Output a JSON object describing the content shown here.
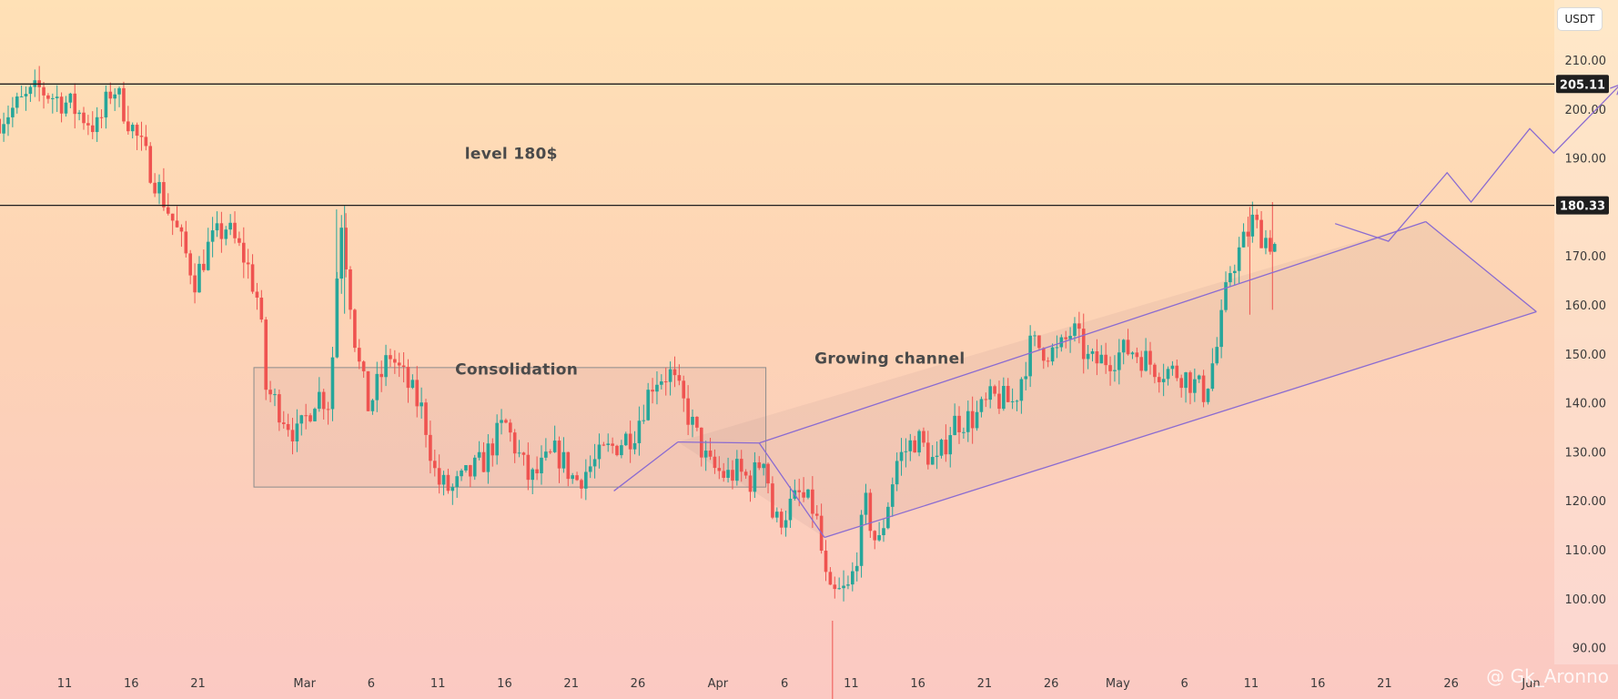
{
  "currency_label": "USDT",
  "watermark": "@ Gk_Aronno",
  "colors": {
    "up": "#26a69a",
    "down": "#ef5350",
    "channel": "#8a6bd1",
    "level_line": "#1f1f1f",
    "box_border": "#8c8c8c"
  },
  "chart_data": {
    "type": "candlestick",
    "title": "",
    "ylim": [
      87,
      220
    ],
    "y_ticks": [
      "210.00",
      "200.00",
      "190.00",
      "180.00",
      "170.00",
      "160.00",
      "150.00",
      "140.00",
      "130.00",
      "120.00",
      "110.00",
      "100.00",
      "90.00"
    ],
    "y_tick_values": [
      210,
      200,
      190,
      180,
      170,
      160,
      150,
      140,
      130,
      120,
      110,
      100,
      90
    ],
    "x_range_days": [
      0,
      120
    ],
    "x_ticks": [
      {
        "label": "11",
        "day": 0
      },
      {
        "label": "16",
        "day": 5
      },
      {
        "label": "21",
        "day": 10
      },
      {
        "label": "Mar",
        "day": 18
      },
      {
        "label": "6",
        "day": 23
      },
      {
        "label": "11",
        "day": 28
      },
      {
        "label": "16",
        "day": 33
      },
      {
        "label": "21",
        "day": 38
      },
      {
        "label": "26",
        "day": 43
      },
      {
        "label": "Apr",
        "day": 49
      },
      {
        "label": "6",
        "day": 54
      },
      {
        "label": "11",
        "day": 59
      },
      {
        "label": "16",
        "day": 64
      },
      {
        "label": "21",
        "day": 69
      },
      {
        "label": "26",
        "day": 74
      },
      {
        "label": "May",
        "day": 79
      },
      {
        "label": "6",
        "day": 84
      },
      {
        "label": "11",
        "day": 89
      },
      {
        "label": "16",
        "day": 94
      },
      {
        "label": "21",
        "day": 99
      },
      {
        "label": "26",
        "day": 104
      },
      {
        "label": "Jun",
        "day": 110
      }
    ],
    "levels": [
      {
        "value": 205.11,
        "label": "205.11"
      },
      {
        "value": 180.33,
        "label": "180.33"
      }
    ],
    "annotations": [
      {
        "text": "level 180$",
        "day": 33.5,
        "value": 189.8
      },
      {
        "text": "Consolidation",
        "day": 33.9,
        "value": 145.8
      },
      {
        "text": "Growing channel",
        "day": 61.9,
        "value": 148.0
      }
    ],
    "consolidation_box": {
      "day_start": 14.2,
      "day_end": 52.6,
      "high": 147.2,
      "low": 122.8
    },
    "channel": {
      "upper": [
        [
          52.1,
          131.8
        ],
        [
          102.1,
          177.0
        ]
      ],
      "lower": [
        [
          57.0,
          112.5
        ],
        [
          110.4,
          158.6
        ]
      ],
      "triangle_top": [
        46.0,
        132.0
      ]
    },
    "projection": [
      [
        95.3,
        176.6
      ],
      [
        99.3,
        173.0
      ],
      [
        103.7,
        187.0
      ],
      [
        105.5,
        181.0
      ],
      [
        109.9,
        196.0
      ],
      [
        111.7,
        191.0
      ],
      [
        116.7,
        205.0
      ]
    ],
    "anchors": [
      {
        "day": -4.9,
        "price": 198
      },
      {
        "day": -1.9,
        "price": 204
      },
      {
        "day": 0.3,
        "price": 201
      },
      {
        "day": 2.5,
        "price": 196
      },
      {
        "day": 3.6,
        "price": 205
      },
      {
        "day": 6.1,
        "price": 190
      },
      {
        "day": 8.3,
        "price": 176
      },
      {
        "day": 9.8,
        "price": 165
      },
      {
        "day": 10.8,
        "price": 172
      },
      {
        "day": 12.1,
        "price": 176
      },
      {
        "day": 13.6,
        "price": 169
      },
      {
        "day": 14.6,
        "price": 160
      },
      {
        "day": 15.1,
        "price": 143
      },
      {
        "day": 17.5,
        "price": 133
      },
      {
        "day": 18.9,
        "price": 142
      },
      {
        "day": 19.9,
        "price": 140
      },
      {
        "day": 20.7,
        "price": 179
      },
      {
        "day": 21.9,
        "price": 150
      },
      {
        "day": 22.8,
        "price": 139
      },
      {
        "day": 24.4,
        "price": 150
      },
      {
        "day": 26.9,
        "price": 138
      },
      {
        "day": 27.9,
        "price": 124
      },
      {
        "day": 29.0,
        "price": 122
      },
      {
        "day": 31.4,
        "price": 128
      },
      {
        "day": 33.0,
        "price": 136
      },
      {
        "day": 34.9,
        "price": 124
      },
      {
        "day": 36.9,
        "price": 130
      },
      {
        "day": 38.3,
        "price": 124
      },
      {
        "day": 40.6,
        "price": 130
      },
      {
        "day": 42.7,
        "price": 134
      },
      {
        "day": 44.2,
        "price": 145
      },
      {
        "day": 45.4,
        "price": 146
      },
      {
        "day": 46.7,
        "price": 138
      },
      {
        "day": 48.3,
        "price": 127
      },
      {
        "day": 49.7,
        "price": 125
      },
      {
        "day": 50.4,
        "price": 126
      },
      {
        "day": 51.5,
        "price": 124
      },
      {
        "day": 52.5,
        "price": 130
      },
      {
        "day": 53.2,
        "price": 115
      },
      {
        "day": 55.1,
        "price": 121
      },
      {
        "day": 56.3,
        "price": 118
      },
      {
        "day": 57.3,
        "price": 100
      },
      {
        "day": 58.9,
        "price": 102
      },
      {
        "day": 60.1,
        "price": 119
      },
      {
        "day": 61.0,
        "price": 110
      },
      {
        "day": 62.4,
        "price": 128
      },
      {
        "day": 63.9,
        "price": 133
      },
      {
        "day": 65.4,
        "price": 127
      },
      {
        "day": 66.6,
        "price": 136
      },
      {
        "day": 68.3,
        "price": 137
      },
      {
        "day": 69.6,
        "price": 141
      },
      {
        "day": 71.2,
        "price": 140
      },
      {
        "day": 72.5,
        "price": 152
      },
      {
        "day": 74.5,
        "price": 150
      },
      {
        "day": 75.6,
        "price": 155
      },
      {
        "day": 76.9,
        "price": 148
      },
      {
        "day": 78.2,
        "price": 149
      },
      {
        "day": 80.0,
        "price": 151
      },
      {
        "day": 82.0,
        "price": 147
      },
      {
        "day": 83.8,
        "price": 146
      },
      {
        "day": 85.5,
        "price": 142
      },
      {
        "day": 86.5,
        "price": 152
      },
      {
        "day": 87.4,
        "price": 167
      },
      {
        "day": 88.3,
        "price": 172
      },
      {
        "day": 89.1,
        "price": 177
      },
      {
        "day": 89.9,
        "price": 174
      },
      {
        "day": 90.9,
        "price": 172
      }
    ]
  }
}
